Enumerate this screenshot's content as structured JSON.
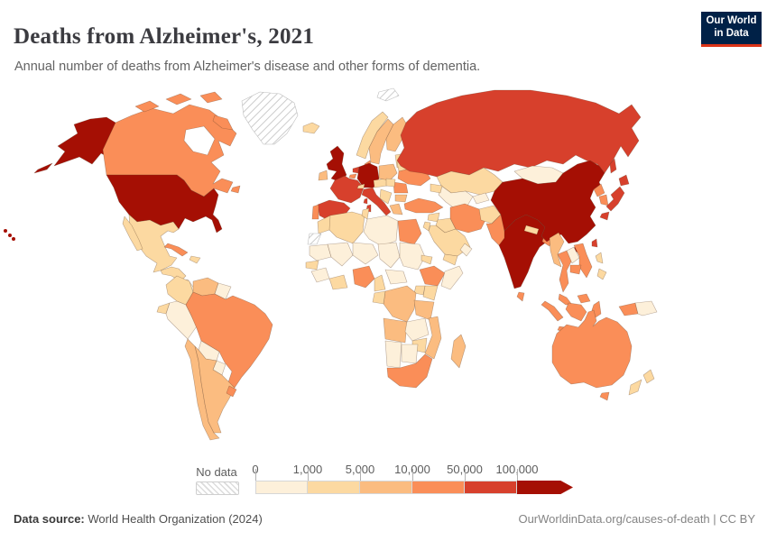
{
  "header": {
    "title": "Deaths from Alzheimer's, 2021",
    "subtitle": "Annual number of deaths from Alzheimer's disease and other forms of dementia.",
    "logo": {
      "line1": "Our World",
      "line2": "in Data",
      "bg_color": "#002147",
      "accent_color": "#dc3418"
    }
  },
  "legend": {
    "no_data_label": "No data",
    "ticks": [
      "0",
      "1,000",
      "5,000",
      "10,000",
      "50,000",
      "100,000"
    ],
    "bins": [
      {
        "label": "0-1,000",
        "color": "#fdf0da"
      },
      {
        "label": "1,000-5,000",
        "color": "#fcd9a1"
      },
      {
        "label": "5,000-10,000",
        "color": "#fbbc80"
      },
      {
        "label": "10,000-50,000",
        "color": "#fa8e58"
      },
      {
        "label": "50,000-100,000",
        "color": "#d7402c"
      },
      {
        "label": ">100,000",
        "color": "#a50f04"
      }
    ]
  },
  "footer": {
    "source_label": "Data source:",
    "source_text": "World Health Organization (2024)",
    "credit": "OurWorldinData.org/causes-of-death | CC BY"
  },
  "chart_data": {
    "type": "heatmap",
    "subtype": "world-choropleth-map",
    "title": "Deaths from Alzheimer's, 2021",
    "unit": "annual deaths from Alzheimer's disease and other forms of dementia",
    "year": "2021",
    "legend_bins": [
      "0-1,000",
      "1,000-5,000",
      "5,000-10,000",
      "10,000-50,000",
      "50,000-100,000",
      ">100,000",
      "No data"
    ],
    "countries": {
      "United States": ">100,000",
      "China": ">100,000",
      "India": ">100,000",
      "Germany": ">100,000",
      "United Kingdom": ">100,000",
      "Russia": "50,000-100,000",
      "Japan": "50,000-100,000",
      "Italy": "50,000-100,000",
      "France": "50,000-100,000",
      "Spain": "50,000-100,000",
      "Netherlands": "50,000-100,000",
      "Taiwan": "50,000-100,000",
      "Canada": "10,000-50,000",
      "Brazil": "10,000-50,000",
      "Australia": "10,000-50,000",
      "Indonesia": "10,000-50,000",
      "Turkey": "10,000-50,000",
      "Iran": "10,000-50,000",
      "Pakistan": "10,000-50,000",
      "Thailand": "10,000-50,000",
      "Vietnam": "10,000-50,000",
      "Egypt": "10,000-50,000",
      "Ukraine": "10,000-50,000",
      "South Korea": "10,000-50,000",
      "North Korea": "10,000-50,000",
      "Bangladesh": "10,000-50,000",
      "Cuba": "10,000-50,000",
      "Uruguay": "10,000-50,000",
      "Portugal": "10,000-50,000",
      "Romania": "10,000-50,000",
      "Denmark": "10,000-50,000",
      "Belgium": "10,000-50,000",
      "Sri Lanka": "10,000-50,000",
      "Cambodia": "10,000-50,000",
      "Malaysia": "10,000-50,000",
      "Nigeria": "10,000-50,000",
      "Ethiopia": "10,000-50,000",
      "South Africa": "10,000-50,000",
      "Sweden": "5,000-10,000",
      "Finland": "5,000-10,000",
      "Poland": "5,000-10,000",
      "Ireland": "5,000-10,000",
      "Chile": "5,000-10,000",
      "Argentina": "5,000-10,000",
      "Venezuela": "5,000-10,000",
      "Tanzania": "5,000-10,000",
      "Madagascar": "5,000-10,000",
      "Angola": "5,000-10,000",
      "Mozambique": "5,000-10,000",
      "Myanmar": "5,000-10,000",
      "Greece": "5,000-10,000",
      "Bulgaria": "5,000-10,000",
      "DR Congo": "5,000-10,000",
      "Mexico": "1,000-5,000",
      "Colombia": "1,000-5,000",
      "Ecuador": "1,000-5,000",
      "Morocco": "1,000-5,000",
      "Algeria": "1,000-5,000",
      "Tunisia": "1,000-5,000",
      "Kazakhstan": "1,000-5,000",
      "Afghanistan": "1,000-5,000",
      "Iraq": "1,000-5,000",
      "Syria": "1,000-5,000",
      "Saudi Arabia": "1,000-5,000",
      "Norway": "1,000-5,000",
      "Baltic states": "1,000-5,000",
      "Belarus": "1,000-5,000",
      "Hungary": "1,000-5,000",
      "Austria-Czechia": "1,000-5,000",
      "Balkans": "1,000-5,000",
      "New Zealand": "1,000-5,000",
      "Philippines": "1,000-5,000",
      "Nepal": "1,000-5,000",
      "Kenya": "1,000-5,000",
      "Uganda": "1,000-5,000",
      "Ghana": "1,000-5,000",
      "Cameroon": "1,000-5,000",
      "Senegal": "1,000-5,000",
      "Eritrea": "1,000-5,000",
      "Zimbabwe": "1,000-5,000",
      "Congo": "1,000-5,000",
      "Jordan": "1,000-5,000",
      "Caucasus": "1,000-5,000",
      "Dominican Republic": "1,000-5,000",
      "Guatemala": "1,000-5,000",
      "Yemen": "1,000-5,000",
      "Iceland": "1,000-5,000",
      "Switzerland": "1,000-5,000",
      "Mongolia": "0-1,000",
      "Peru": "0-1,000",
      "Bolivia": "0-1,000",
      "Paraguay": "0-1,000",
      "Libya": "0-1,000",
      "Sudan": "0-1,000",
      "Chad": "0-1,000",
      "Niger": "0-1,000",
      "Mali": "0-1,000",
      "Mauritania": "0-1,000",
      "Somalia": "0-1,000",
      "Namibia": "0-1,000",
      "Botswana": "0-1,000",
      "Zambia": "0-1,000",
      "Central African Republic": "0-1,000",
      "Laos": "0-1,000",
      "Papua New Guinea": "0-1,000",
      "Guyana": "0-1,000",
      "Central Asia": "0-1,000",
      "Kyrgyzstan": "0-1,000",
      "Oman": "0-1,000",
      "Nicaragua": "0-1,000",
      "Guinea": "0-1,000",
      "Greenland": "No data",
      "Western Sahara": "No data",
      "Svalbard": "No data"
    }
  }
}
